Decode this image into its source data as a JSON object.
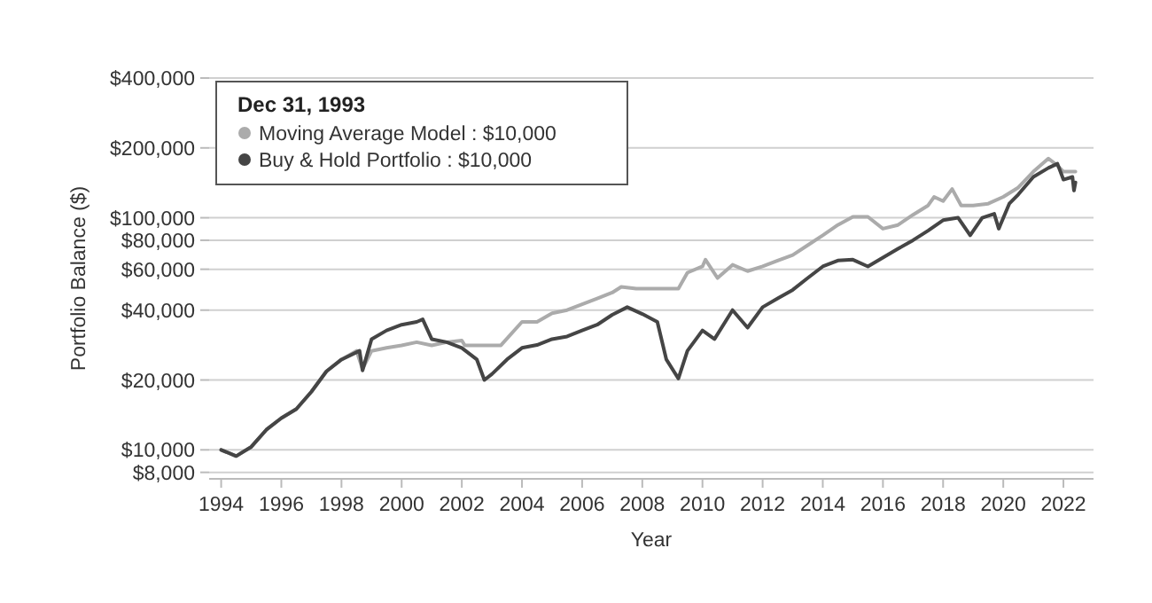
{
  "chart_data": {
    "type": "line",
    "xlabel": "Year",
    "ylabel": "Portfolio Balance ($)",
    "legend_title": "Dec 31, 1993",
    "legend": "top left",
    "grid": "y",
    "log": "y",
    "xlim": [
      1993.6,
      2023
    ],
    "xticks": [
      1994,
      1996,
      1998,
      2000,
      2002,
      2004,
      2006,
      2008,
      2010,
      2012,
      2014,
      2016,
      2018,
      2020,
      2022
    ],
    "ylim": [
      7500,
      400000
    ],
    "yticks": [
      {
        "value": 8000,
        "label": "$8,000"
      },
      {
        "value": 10000,
        "label": "$10,000"
      },
      {
        "value": 20000,
        "label": "$20,000"
      },
      {
        "value": 40000,
        "label": "$40,000"
      },
      {
        "value": 60000,
        "label": "$60,000"
      },
      {
        "value": 80000,
        "label": "$80,000"
      },
      {
        "value": 100000,
        "label": "$100,000"
      },
      {
        "value": 200000,
        "label": "$200,000"
      },
      {
        "value": 400000,
        "label": "$400,000"
      }
    ],
    "series": [
      {
        "name": "Moving Average Model : $10,000",
        "color": "#ababab",
        "x": [
          1994,
          1994.5,
          1995,
          1995.5,
          1996,
          1996.5,
          1997,
          1997.5,
          1998,
          1998.5,
          1998.7,
          1999,
          1999.5,
          2000,
          2000.5,
          2001,
          2001.5,
          2002,
          2002.1,
          2003.3,
          2004,
          2004.5,
          2005,
          2005.5,
          2006,
          2006.5,
          2007,
          2007.3,
          2007.8,
          2009.2,
          2009.5,
          2010,
          2010.1,
          2010.5,
          2011,
          2011.5,
          2012,
          2012.5,
          2013,
          2013.5,
          2014,
          2014.5,
          2015,
          2015.5,
          2016,
          2016.5,
          2017,
          2017.5,
          2017.7,
          2018,
          2018.3,
          2018.6,
          2019,
          2019.5,
          2020,
          2020.5,
          2021,
          2021.5,
          2021.8,
          2022,
          2022.4
        ],
        "values": [
          10000,
          9400,
          10300,
          12200,
          13700,
          15000,
          17800,
          21800,
          24500,
          26700,
          22300,
          26700,
          27500,
          28200,
          29100,
          28200,
          29100,
          29600,
          28200,
          28200,
          35600,
          35600,
          38800,
          40000,
          42400,
          44900,
          47600,
          50400,
          49500,
          49500,
          58000,
          61700,
          66000,
          55000,
          62700,
          58900,
          61700,
          65400,
          69100,
          76200,
          84000,
          93100,
          101000,
          101000,
          89700,
          93100,
          103000,
          113000,
          123000,
          118000,
          133000,
          113000,
          113000,
          115000,
          123000,
          135000,
          158000,
          180000,
          168000,
          158000,
          158000
        ]
      },
      {
        "name": "Buy & Hold Portfolio : $10,000",
        "color": "#454545",
        "x": [
          1994,
          1994.5,
          1995,
          1995.5,
          1996,
          1996.5,
          1997,
          1997.5,
          1998,
          1998.6,
          1998.7,
          1999,
          1999.5,
          2000,
          2000.5,
          2000.7,
          2001,
          2001.5,
          2002,
          2002.5,
          2002.75,
          2003,
          2003.5,
          2004,
          2004.5,
          2005,
          2005.5,
          2006,
          2006.5,
          2007,
          2007.5,
          2008,
          2008.5,
          2008.8,
          2009.2,
          2009.5,
          2010,
          2010.4,
          2011,
          2011.5,
          2012,
          2012.5,
          2013,
          2013.5,
          2014,
          2014.5,
          2015,
          2015.5,
          2016,
          2016.5,
          2017,
          2017.5,
          2018,
          2018.5,
          2018.9,
          2019.3,
          2019.7,
          2019.85,
          2020.2,
          2020.5,
          2021,
          2021.5,
          2021.8,
          2022,
          2022.3,
          2022.35,
          2022.4
        ],
        "values": [
          10000,
          9400,
          10300,
          12200,
          13700,
          15000,
          17800,
          21800,
          24500,
          26700,
          22000,
          30000,
          32700,
          34600,
          35600,
          36500,
          30000,
          29100,
          27500,
          24500,
          20000,
          21200,
          24500,
          27500,
          28300,
          30000,
          30800,
          32700,
          34600,
          38200,
          41200,
          38500,
          35600,
          24500,
          20300,
          26700,
          32700,
          30000,
          40000,
          33600,
          41200,
          44900,
          48900,
          55000,
          61700,
          65400,
          66000,
          61700,
          67300,
          73500,
          80000,
          88000,
          97600,
          100000,
          84000,
          100000,
          104000,
          89700,
          115000,
          126000,
          150000,
          164000,
          171000,
          146000,
          150000,
          131000,
          142000
        ]
      }
    ]
  }
}
